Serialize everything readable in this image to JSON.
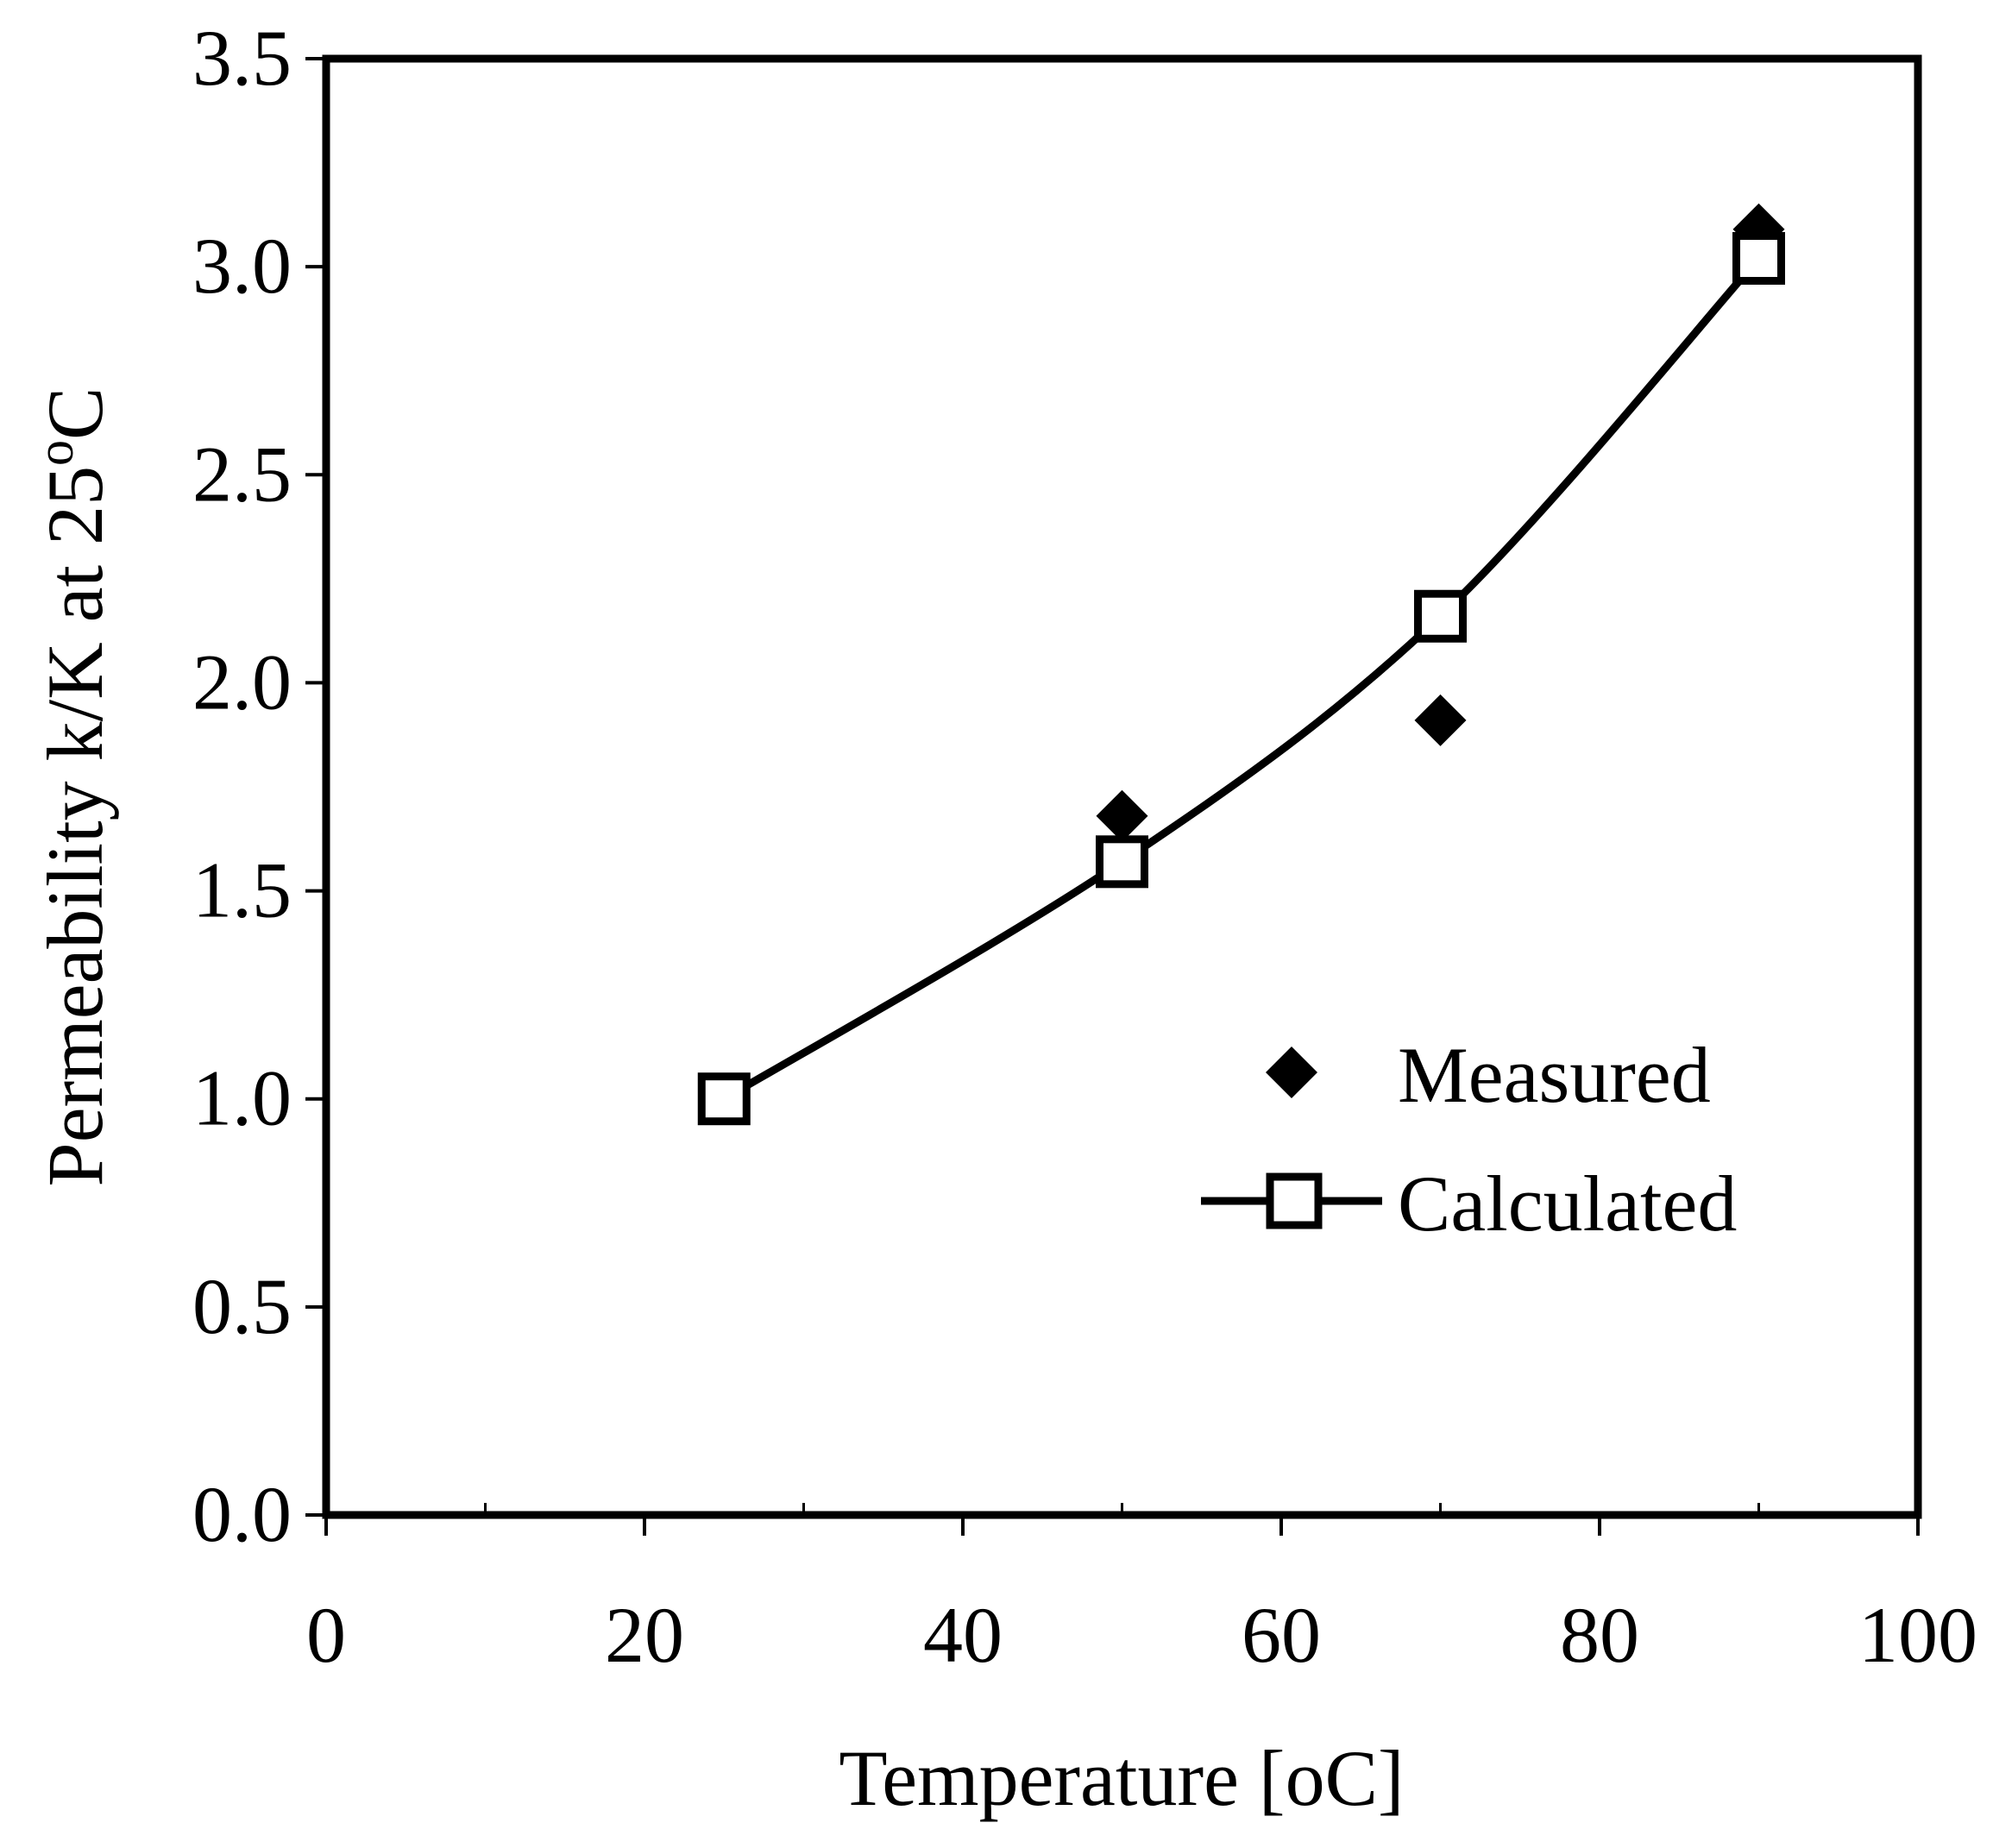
{
  "chart_data": {
    "type": "line",
    "title": "",
    "xlabel": "Temperature [oC]",
    "ylabel_main": "Permeability k/K at 25",
    "ylabel_degree": "o",
    "ylabel_unit": "C",
    "xlim": [
      0,
      100
    ],
    "ylim": [
      0.0,
      3.5
    ],
    "x_ticks": [
      0,
      20,
      40,
      60,
      80,
      100
    ],
    "x_tick_labels": [
      "0",
      "20",
      "40",
      "60",
      "80",
      "100"
    ],
    "x_minor_ticks": [
      10,
      30,
      50,
      70,
      90
    ],
    "y_ticks": [
      0.0,
      0.5,
      1.0,
      1.5,
      2.0,
      2.5,
      3.0,
      3.5
    ],
    "y_tick_labels": [
      "0.0",
      "0.5",
      "1.0",
      "1.5",
      "2.0",
      "2.5",
      "3.0",
      "3.5"
    ],
    "grid": false,
    "legend_position": "lower-right",
    "series": [
      {
        "name": "Measured",
        "marker": "diamond-filled",
        "line": false,
        "x": [
          25,
          50,
          70,
          90
        ],
        "y": [
          1.0,
          1.68,
          1.91,
          3.09
        ]
      },
      {
        "name": "Calculated",
        "marker": "square-open",
        "line": true,
        "x": [
          25,
          50,
          70,
          90
        ],
        "y": [
          1.0,
          1.57,
          2.16,
          3.02
        ]
      }
    ],
    "colors": {
      "ink": "#000000",
      "background": "#ffffff"
    }
  }
}
